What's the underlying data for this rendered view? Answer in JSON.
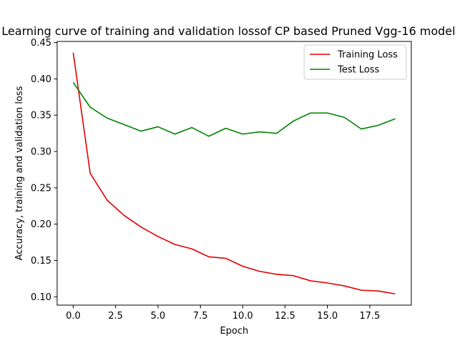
{
  "chart_data": {
    "type": "line",
    "title": "Learning curve of training and validation lossof CP based Pruned Vgg-16 model",
    "xlabel": "Epoch",
    "ylabel": "Accuracy, training and validation loss",
    "xlim": [
      -0.95,
      19.95
    ],
    "ylim": [
      0.0885,
      0.4515
    ],
    "xticks": [
      0.0,
      2.5,
      5.0,
      7.5,
      10.0,
      12.5,
      15.0,
      17.5
    ],
    "xtick_labels": [
      "0.0",
      "2.5",
      "5.0",
      "7.5",
      "10.0",
      "12.5",
      "15.0",
      "17.5"
    ],
    "yticks": [
      0.1,
      0.15,
      0.2,
      0.25,
      0.3,
      0.35,
      0.4,
      0.45
    ],
    "ytick_labels": [
      "0.10",
      "0.15",
      "0.20",
      "0.25",
      "0.30",
      "0.35",
      "0.40",
      "0.45"
    ],
    "grid": false,
    "legend_position": "top-right",
    "x": [
      0,
      1,
      2,
      3,
      4,
      5,
      6,
      7,
      8,
      9,
      10,
      11,
      12,
      13,
      14,
      15,
      16,
      17,
      18,
      19
    ],
    "series": [
      {
        "name": "Training Loss",
        "color": "#e00000",
        "values": [
          0.436,
          0.27,
          0.233,
          0.212,
          0.196,
          0.183,
          0.172,
          0.166,
          0.155,
          0.153,
          0.142,
          0.135,
          0.131,
          0.129,
          0.122,
          0.119,
          0.115,
          0.109,
          0.108,
          0.104
        ]
      },
      {
        "name": "Test Loss",
        "color": "#008000",
        "values": [
          0.395,
          0.361,
          0.346,
          0.337,
          0.328,
          0.334,
          0.324,
          0.333,
          0.321,
          0.332,
          0.324,
          0.327,
          0.325,
          0.342,
          0.353,
          0.353,
          0.347,
          0.331,
          0.336,
          0.345
        ]
      }
    ]
  }
}
